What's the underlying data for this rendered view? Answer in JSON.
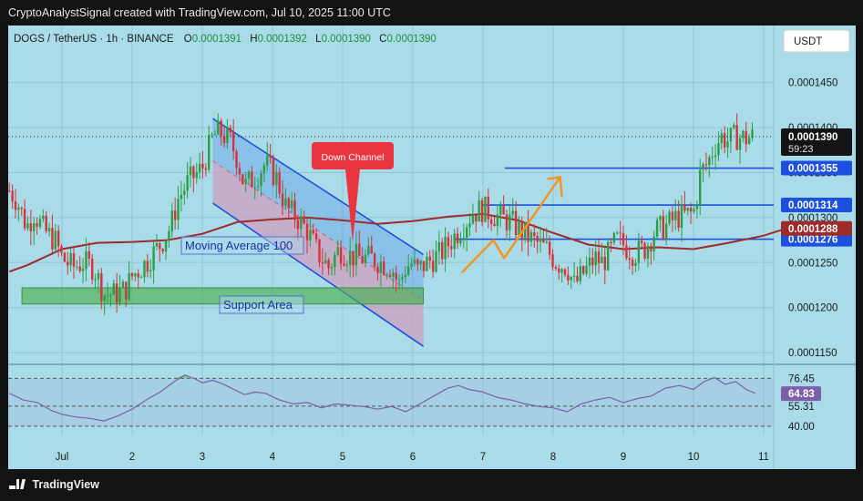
{
  "header": {
    "credit": "CryptoAnalystSignal created with TradingView.com, Jul 10, 2025 11:00 UTC"
  },
  "legend": {
    "symbol": "DOGS / TetherUS · 1h · BINANCE",
    "o_label": "O",
    "o_value": "0.0001391",
    "h_label": "H",
    "h_value": "0.0001392",
    "l_label": "L",
    "l_value": "0.0001390",
    "c_label": "C",
    "c_value": "0.0001390"
  },
  "currency_button": "USDT",
  "footer": {
    "brand": "TradingView"
  },
  "colors": {
    "background": "#a9dce8",
    "up_candle": "#2e9e44",
    "down_candle": "#d8313a",
    "moving_average": "#9e2a2a",
    "level_line": "#1e50e0",
    "rsi_line": "#7b5fa8",
    "support": "#4caf50",
    "arrow": "#f7931a",
    "callout": "#e8353f"
  },
  "chart_data": {
    "type": "candlestick",
    "title": "",
    "xlabel": "",
    "ylabel": "",
    "x_ticks": [
      "Jul",
      "2",
      "3",
      "4",
      "5",
      "6",
      "7",
      "8",
      "9",
      "10",
      "11"
    ],
    "y_ticks": [
      "0.0001450",
      "0.0001400",
      "0.0001350",
      "0.0001300",
      "0.0001250",
      "0.0001200",
      "0.0001150"
    ],
    "ylim": [
      0.0001139,
      0.0001479
    ],
    "grid": true,
    "current_price": {
      "value": 0.000139,
      "label": "0.0001390",
      "countdown": "59:23"
    },
    "levels": [
      {
        "value": 0.0001355,
        "label": "0.0001355",
        "x_start": 6.31
      },
      {
        "value": 0.0001314,
        "label": "0.0001314",
        "x_start": 6.0
      },
      {
        "value": 0.0001276,
        "label": "0.0001276",
        "x_start": 5.6
      }
    ],
    "moving_average": {
      "name": "Moving Average 100",
      "value": 0.0001288,
      "label": "0.0001288",
      "points": [
        [
          -0.75,
          0.000124
        ],
        [
          -0.5,
          0.0001247
        ],
        [
          0,
          0.0001265
        ],
        [
          0.5,
          0.0001272
        ],
        [
          1,
          0.0001273
        ],
        [
          1.5,
          0.0001275
        ],
        [
          2,
          0.0001282
        ],
        [
          2.5,
          0.0001295
        ],
        [
          3,
          0.0001298
        ],
        [
          3.5,
          0.00013
        ],
        [
          4,
          0.0001297
        ],
        [
          4.5,
          0.0001293
        ],
        [
          5,
          0.0001296
        ],
        [
          5.5,
          0.0001301
        ],
        [
          6,
          0.0001304
        ],
        [
          6.5,
          0.0001297
        ],
        [
          7,
          0.0001283
        ],
        [
          7.5,
          0.000127
        ],
        [
          8,
          0.0001265
        ],
        [
          8.5,
          0.0001267
        ],
        [
          9,
          0.0001265
        ],
        [
          9.5,
          0.0001272
        ],
        [
          10,
          0.000128
        ],
        [
          10.44,
          0.0001291
        ]
      ]
    },
    "price_path": [
      [
        -0.75,
        0.000133
      ],
      [
        -0.65,
        0.000132
      ],
      [
        -0.5,
        0.000129
      ],
      [
        -0.4,
        0.0001305
      ],
      [
        -0.25,
        0.0001285
      ],
      [
        -0.1,
        0.0001275
      ],
      [
        0.0,
        0.0001255
      ],
      [
        0.15,
        0.0001245
      ],
      [
        0.3,
        0.000125
      ],
      [
        0.45,
        0.0001245
      ],
      [
        0.6,
        0.0001215
      ],
      [
        0.75,
        0.0001215
      ],
      [
        0.9,
        0.000122
      ],
      [
        1.0,
        0.0001235
      ],
      [
        1.2,
        0.000125
      ],
      [
        1.4,
        0.000127
      ],
      [
        1.55,
        0.000129
      ],
      [
        1.65,
        0.000132
      ],
      [
        1.8,
        0.000134
      ],
      [
        2.0,
        0.0001355
      ],
      [
        2.15,
        0.000139
      ],
      [
        2.25,
        0.0001395
      ],
      [
        2.4,
        0.0001385
      ],
      [
        2.5,
        0.0001365
      ],
      [
        2.6,
        0.0001335
      ],
      [
        2.75,
        0.0001345
      ],
      [
        2.9,
        0.000136
      ],
      [
        3.05,
        0.0001345
      ],
      [
        3.2,
        0.000131
      ],
      [
        3.35,
        0.00013
      ],
      [
        3.5,
        0.0001285
      ],
      [
        3.65,
        0.000126
      ],
      [
        3.8,
        0.0001245
      ],
      [
        3.95,
        0.0001265
      ],
      [
        4.1,
        0.0001258
      ],
      [
        4.25,
        0.0001255
      ],
      [
        4.4,
        0.0001255
      ],
      [
        4.55,
        0.000125
      ],
      [
        4.7,
        0.0001245
      ],
      [
        4.8,
        0.0001225
      ],
      [
        4.9,
        0.0001245
      ],
      [
        5.0,
        0.000125
      ],
      [
        5.05,
        0.000124
      ],
      [
        5.2,
        0.000125
      ],
      [
        5.4,
        0.000126
      ],
      [
        5.55,
        0.0001275
      ],
      [
        5.7,
        0.000129
      ],
      [
        5.85,
        0.0001305
      ],
      [
        6.0,
        0.000131
      ],
      [
        6.1,
        0.0001305
      ],
      [
        6.25,
        0.00013
      ],
      [
        6.4,
        0.0001295
      ],
      [
        6.55,
        0.0001285
      ],
      [
        6.7,
        0.0001275
      ],
      [
        6.9,
        0.0001265
      ],
      [
        7.05,
        0.000125
      ],
      [
        7.2,
        0.0001245
      ],
      [
        7.3,
        0.0001225
      ],
      [
        7.5,
        0.0001245
      ],
      [
        7.6,
        0.0001255
      ],
      [
        7.7,
        0.000125
      ],
      [
        7.8,
        0.000126
      ],
      [
        7.9,
        0.0001275
      ],
      [
        8.0,
        0.000127
      ],
      [
        8.15,
        0.000126
      ],
      [
        8.3,
        0.0001265
      ],
      [
        8.45,
        0.0001285
      ],
      [
        8.6,
        0.000129
      ],
      [
        8.75,
        0.00013
      ],
      [
        9.0,
        0.0001305
      ],
      [
        9.05,
        0.0001325
      ],
      [
        9.1,
        0.000135
      ],
      [
        9.2,
        0.000136
      ],
      [
        9.3,
        0.000138
      ],
      [
        9.4,
        0.000139
      ],
      [
        9.5,
        0.0001385
      ],
      [
        9.6,
        0.000139
      ],
      [
        9.75,
        0.0001388
      ],
      [
        9.85,
        0.000139
      ]
    ],
    "annotations": {
      "down_channel_label": "Down Channel",
      "ma_label": "Moving Average 100",
      "support_label": "Support Area",
      "channel": {
        "top_left": [
          2.15,
          0.000141
        ],
        "top_right": [
          5.15,
          0.0001259
        ],
        "bottom_right": [
          5.15,
          0.0001157
        ],
        "bottom_left": [
          2.15,
          0.0001316
        ]
      },
      "support_area": {
        "x": [
          -0.57,
          5.15
        ],
        "y": [
          0.0001204,
          0.0001222
        ]
      },
      "arrow_points": [
        [
          5.7,
          0.0001239
        ],
        [
          6.15,
          0.0001275
        ],
        [
          6.3,
          0.0001255
        ],
        [
          7.1,
          0.0001345
        ]
      ]
    },
    "rsi": {
      "levels": [
        {
          "value": 76.45,
          "label": "76.45"
        },
        {
          "value": 64.83,
          "label": "64.83"
        },
        {
          "value": 55.31,
          "label": "55.31"
        },
        {
          "value": 40.0,
          "label": "40.00"
        }
      ],
      "ylim": [
        33,
        85
      ],
      "values": [
        [
          -0.75,
          65
        ],
        [
          -0.55,
          60
        ],
        [
          -0.35,
          58
        ],
        [
          -0.15,
          52
        ],
        [
          0,
          49
        ],
        [
          0.2,
          47
        ],
        [
          0.4,
          46
        ],
        [
          0.6,
          44
        ],
        [
          0.8,
          48
        ],
        [
          1.0,
          53
        ],
        [
          1.2,
          60
        ],
        [
          1.4,
          66
        ],
        [
          1.6,
          74
        ],
        [
          1.75,
          79
        ],
        [
          1.9,
          76
        ],
        [
          2.0,
          73
        ],
        [
          2.15,
          75
        ],
        [
          2.3,
          72
        ],
        [
          2.45,
          68
        ],
        [
          2.6,
          64
        ],
        [
          2.75,
          66
        ],
        [
          2.9,
          65
        ],
        [
          3.1,
          60
        ],
        [
          3.3,
          57
        ],
        [
          3.5,
          58
        ],
        [
          3.7,
          54
        ],
        [
          3.9,
          57
        ],
        [
          4.1,
          56
        ],
        [
          4.3,
          55
        ],
        [
          4.5,
          53
        ],
        [
          4.7,
          55
        ],
        [
          4.9,
          51
        ],
        [
          5.1,
          57
        ],
        [
          5.3,
          63
        ],
        [
          5.5,
          69
        ],
        [
          5.65,
          71
        ],
        [
          5.8,
          68
        ],
        [
          6.0,
          66
        ],
        [
          6.2,
          62
        ],
        [
          6.4,
          60
        ],
        [
          6.6,
          57
        ],
        [
          6.8,
          55
        ],
        [
          7.0,
          54
        ],
        [
          7.2,
          51
        ],
        [
          7.4,
          57
        ],
        [
          7.6,
          60
        ],
        [
          7.8,
          62
        ],
        [
          8.0,
          58
        ],
        [
          8.2,
          61
        ],
        [
          8.4,
          63
        ],
        [
          8.6,
          69
        ],
        [
          8.8,
          71
        ],
        [
          9.0,
          68
        ],
        [
          9.15,
          74
        ],
        [
          9.3,
          77
        ],
        [
          9.45,
          72
        ],
        [
          9.6,
          74
        ],
        [
          9.75,
          68
        ],
        [
          9.88,
          65
        ]
      ]
    }
  }
}
